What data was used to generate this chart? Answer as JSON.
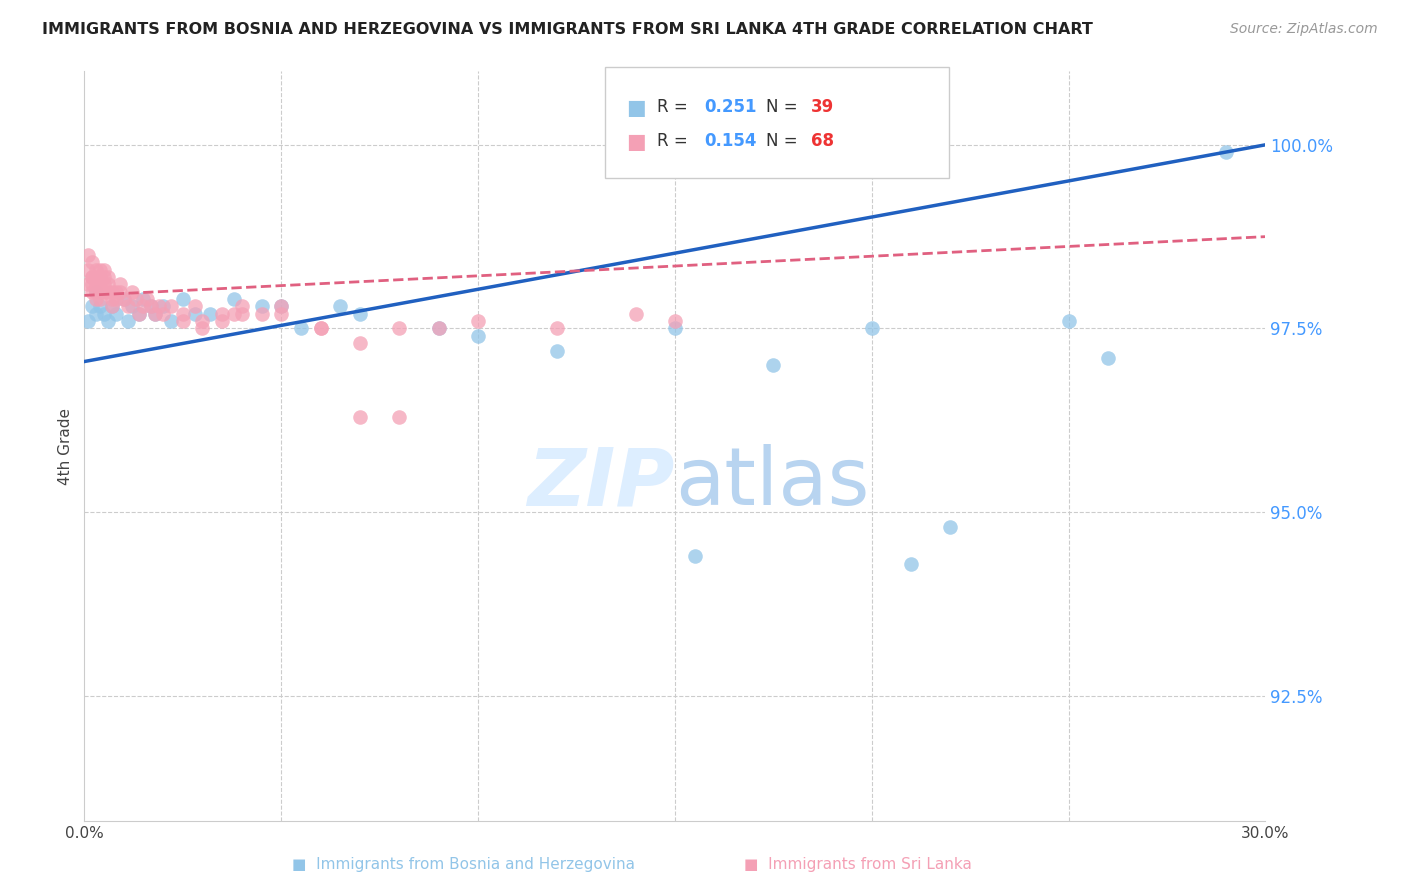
{
  "title": "IMMIGRANTS FROM BOSNIA AND HERZEGOVINA VS IMMIGRANTS FROM SRI LANKA 4TH GRADE CORRELATION CHART",
  "source": "Source: ZipAtlas.com",
  "xlabel_bosnia": "Immigrants from Bosnia and Herzegovina",
  "xlabel_srilanka": "Immigrants from Sri Lanka",
  "ylabel": "4th Grade",
  "xlim_min": 0.0,
  "xlim_max": 0.3,
  "ylim_min": 0.908,
  "ylim_max": 1.01,
  "yticks": [
    0.925,
    0.95,
    0.975,
    1.0
  ],
  "ytick_labels": [
    "92.5%",
    "95.0%",
    "97.5%",
    "100.0%"
  ],
  "bosnia_R": 0.251,
  "bosnia_N": 39,
  "srilanka_R": 0.154,
  "srilanka_N": 68,
  "bosnia_color": "#92C5E8",
  "srilanka_color": "#F4A0B5",
  "bosnia_line_color": "#2060C0",
  "srilanka_line_color": "#E06080",
  "watermark_color": "#ddeeff",
  "grid_color": "#cccccc",
  "right_tick_color": "#4499FF",
  "title_color": "#222222",
  "source_color": "#999999",
  "bottom_label_color_bos": "#92C5E8",
  "bottom_label_color_sri": "#F4A0B5",
  "bosnia_x": [
    0.001,
    0.002,
    0.003,
    0.003,
    0.004,
    0.005,
    0.006,
    0.007,
    0.008,
    0.01,
    0.011,
    0.012,
    0.014,
    0.015,
    0.017,
    0.018,
    0.02,
    0.022,
    0.025,
    0.028,
    0.032,
    0.038,
    0.045,
    0.05,
    0.055,
    0.065,
    0.07,
    0.09,
    0.1,
    0.12,
    0.15,
    0.155,
    0.175,
    0.2,
    0.21,
    0.22,
    0.25,
    0.26,
    0.29
  ],
  "bosnia_y": [
    0.976,
    0.978,
    0.977,
    0.98,
    0.978,
    0.977,
    0.976,
    0.978,
    0.977,
    0.979,
    0.976,
    0.978,
    0.977,
    0.979,
    0.978,
    0.977,
    0.978,
    0.976,
    0.979,
    0.977,
    0.977,
    0.979,
    0.978,
    0.978,
    0.975,
    0.978,
    0.977,
    0.975,
    0.974,
    0.972,
    0.975,
    0.944,
    0.97,
    0.975,
    0.943,
    0.948,
    0.976,
    0.971,
    0.999
  ],
  "srilanka_x": [
    0.001,
    0.001,
    0.001,
    0.002,
    0.002,
    0.002,
    0.002,
    0.002,
    0.003,
    0.003,
    0.003,
    0.003,
    0.003,
    0.004,
    0.004,
    0.004,
    0.004,
    0.004,
    0.005,
    0.005,
    0.005,
    0.005,
    0.006,
    0.006,
    0.006,
    0.007,
    0.007,
    0.007,
    0.008,
    0.008,
    0.009,
    0.009,
    0.01,
    0.011,
    0.012,
    0.013,
    0.014,
    0.015,
    0.016,
    0.017,
    0.018,
    0.019,
    0.02,
    0.022,
    0.025,
    0.028,
    0.03,
    0.035,
    0.04,
    0.045,
    0.05,
    0.06,
    0.07,
    0.08,
    0.09,
    0.1,
    0.12,
    0.14,
    0.15,
    0.06,
    0.025,
    0.03,
    0.04,
    0.05,
    0.035,
    0.038,
    0.07,
    0.08
  ],
  "srilanka_y": [
    0.983,
    0.981,
    0.985,
    0.982,
    0.984,
    0.981,
    0.98,
    0.982,
    0.983,
    0.98,
    0.979,
    0.981,
    0.982,
    0.983,
    0.98,
    0.979,
    0.981,
    0.982,
    0.983,
    0.98,
    0.982,
    0.981,
    0.98,
    0.982,
    0.981,
    0.98,
    0.979,
    0.978,
    0.98,
    0.979,
    0.981,
    0.98,
    0.979,
    0.978,
    0.98,
    0.979,
    0.977,
    0.978,
    0.979,
    0.978,
    0.977,
    0.978,
    0.977,
    0.978,
    0.977,
    0.978,
    0.976,
    0.977,
    0.978,
    0.977,
    0.978,
    0.975,
    0.973,
    0.963,
    0.975,
    0.976,
    0.975,
    0.977,
    0.976,
    0.975,
    0.976,
    0.975,
    0.977,
    0.977,
    0.976,
    0.977,
    0.963,
    0.975
  ],
  "bos_line_x0": 0.0,
  "bos_line_y0": 0.9705,
  "bos_line_x1": 0.3,
  "bos_line_y1": 1.0,
  "sri_line_x0": 0.0,
  "sri_line_y0": 0.9795,
  "sri_line_x1": 0.15,
  "sri_line_y1": 0.9835
}
